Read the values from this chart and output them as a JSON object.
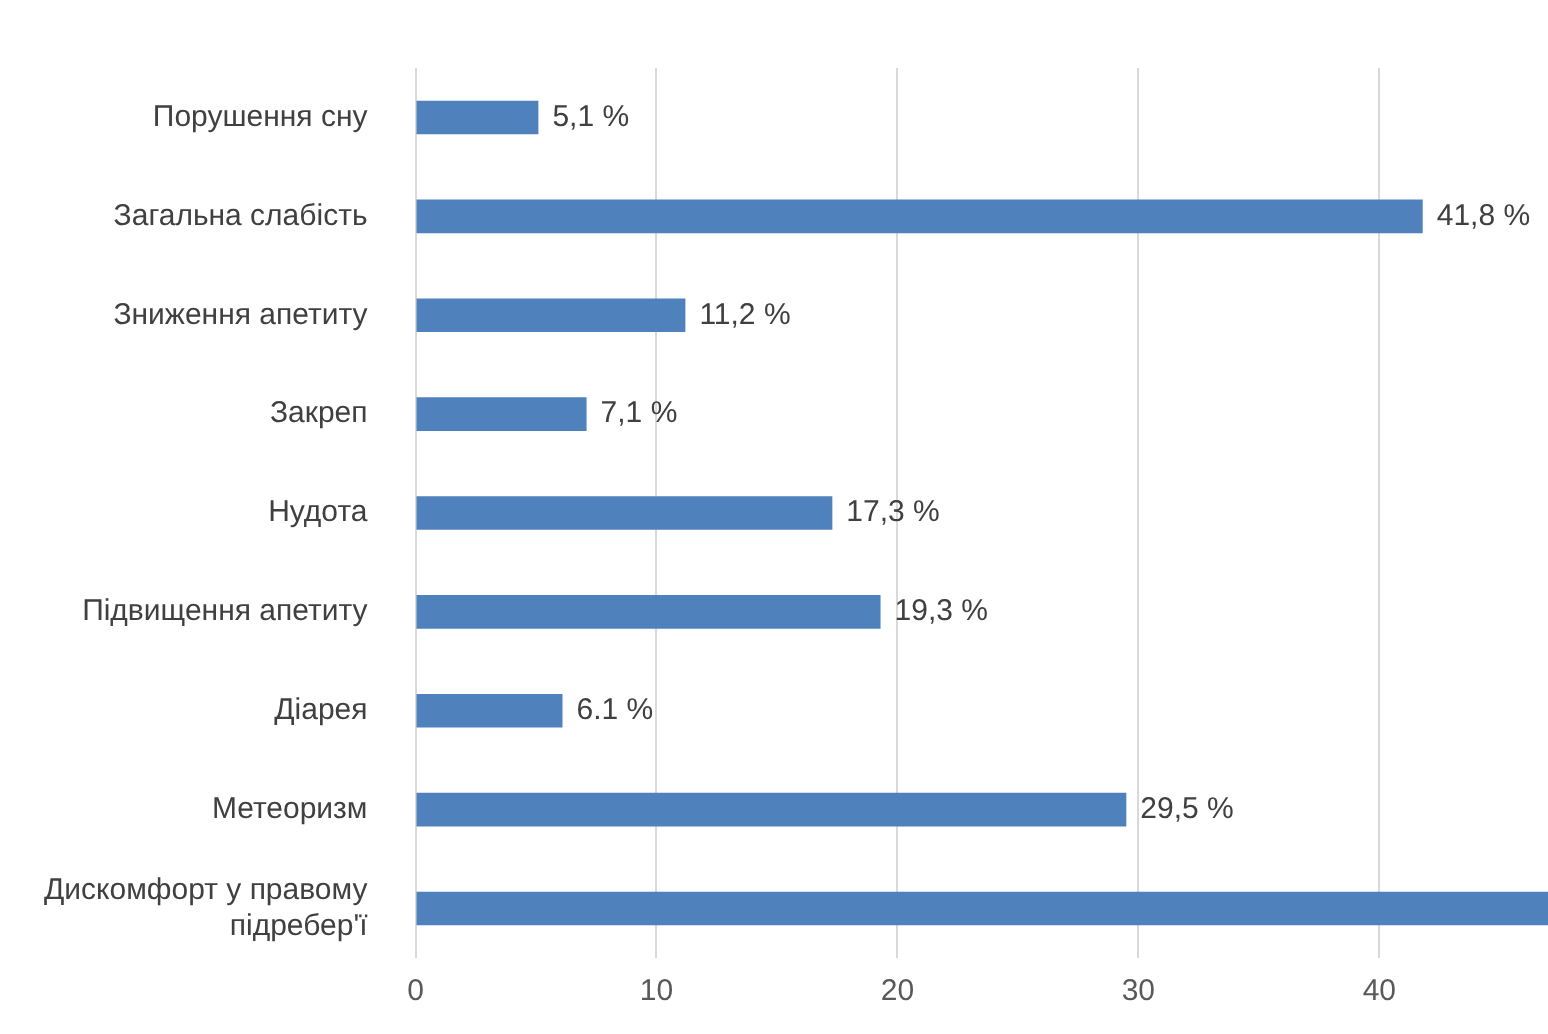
{
  "chart_data": {
    "type": "bar",
    "orientation": "horizontal",
    "categories": [
      "Порушення сну",
      "Загальна слабість",
      "Зниження апетиту",
      "Закреп",
      "Нудота",
      "Підвищення апетиту",
      "Діарея",
      "Метеоризм",
      "Дискомфорт у правому підребер'ї"
    ],
    "series": [
      {
        "color": "#4f81bd",
        "values": [
          5.1,
          41.8,
          11.2,
          7.1,
          17.3,
          19.3,
          6.1,
          29.5,
          47
        ],
        "value_labels": [
          "5,1 %",
          "41,8 %",
          "11,2 %",
          "7,1 %",
          "17,3 %",
          "19,3 %",
          "6.1 %",
          "29,5 %",
          null
        ]
      }
    ],
    "xlim": [
      0,
      47
    ],
    "xticks": [
      0,
      10,
      20,
      30,
      40
    ],
    "grid": "x",
    "legend": false
  }
}
